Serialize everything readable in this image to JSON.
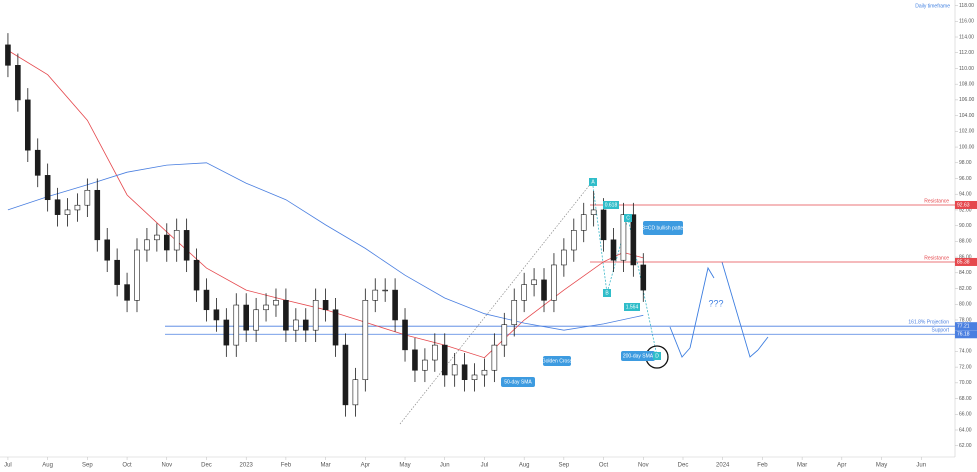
{
  "chart_data": {
    "type": "candlestick",
    "annotations": [
      "Daily timeframe",
      "AB=CD bullish pattern",
      "Golden Cross",
      "200-day SMA",
      "50-day SMA",
      "???",
      "A",
      "B",
      "C",
      "D",
      "0.618",
      "1.564"
    ],
    "x": [
      0,
      0.25,
      0.5,
      0.75,
      1,
      1.25,
      1.5,
      1.75,
      2,
      2.25,
      2.5,
      2.75,
      3,
      3.25,
      3.5,
      3.75,
      4,
      4.25,
      4.5,
      4.75,
      5,
      5.25,
      5.5,
      5.75,
      6,
      6.25,
      6.5,
      6.75,
      7,
      7.25,
      7.5,
      7.75,
      8,
      8.25,
      8.5,
      8.75,
      9,
      9.25,
      9.5,
      9.75,
      10,
      10.25,
      10.5,
      10.75,
      11,
      11.25,
      11.5,
      11.75,
      12,
      12.25,
      12.5,
      12.75,
      13,
      13.25,
      13.5,
      13.75,
      14,
      14.25,
      14.5,
      14.75,
      15,
      15.25,
      15.5,
      15.75,
      16
    ],
    "open": [
      113.0,
      110.4,
      106.0,
      99.6,
      96.4,
      93.3,
      91.4,
      92.0,
      92.6,
      94.5,
      88.2,
      85.6,
      82.5,
      80.5,
      86.9,
      88.2,
      88.8,
      86.9,
      89.4,
      85.6,
      81.8,
      79.3,
      78.0,
      74.8,
      79.9,
      76.7,
      79.3,
      79.9,
      80.5,
      76.7,
      78.0,
      76.7,
      80.5,
      79.3,
      74.8,
      67.2,
      70.4,
      80.5,
      81.8,
      81.8,
      78.0,
      74.2,
      71.6,
      72.9,
      74.8,
      71.0,
      72.3,
      70.4,
      71.0,
      71.6,
      74.8,
      77.4,
      80.5,
      82.5,
      83.1,
      80.5,
      85.0,
      86.9,
      89.4,
      91.4,
      92.0,
      88.2,
      85.6,
      91.4,
      85.0
    ],
    "high": [
      114.5,
      111.9,
      107.5,
      101.1,
      97.9,
      94.8,
      93.5,
      94.1,
      96.0,
      96.0,
      89.7,
      87.1,
      84.0,
      88.4,
      89.7,
      90.3,
      90.3,
      90.9,
      90.9,
      87.1,
      83.3,
      80.8,
      79.5,
      81.4,
      81.4,
      80.8,
      81.4,
      82.0,
      82.0,
      79.5,
      79.5,
      82.0,
      82.0,
      80.8,
      76.3,
      71.9,
      82.0,
      83.3,
      83.3,
      83.3,
      79.5,
      75.7,
      74.4,
      76.3,
      76.3,
      73.8,
      73.8,
      72.5,
      73.1,
      76.3,
      78.9,
      82.0,
      84.0,
      84.6,
      84.6,
      86.5,
      88.4,
      90.9,
      92.9,
      94.4,
      93.5,
      89.7,
      92.9,
      92.9,
      86.5
    ],
    "low": [
      108.9,
      104.5,
      98.1,
      94.9,
      91.8,
      89.9,
      89.9,
      90.5,
      91.1,
      86.7,
      84.1,
      81.0,
      79.0,
      79.0,
      85.4,
      86.7,
      85.4,
      85.4,
      84.1,
      80.3,
      77.8,
      76.5,
      73.3,
      73.3,
      75.2,
      75.2,
      77.8,
      78.4,
      75.2,
      75.2,
      75.2,
      75.2,
      77.8,
      73.3,
      65.7,
      65.7,
      68.9,
      79.0,
      80.3,
      76.5,
      72.7,
      70.1,
      70.1,
      71.4,
      69.5,
      69.5,
      68.9,
      68.9,
      69.5,
      70.1,
      73.3,
      75.9,
      79.0,
      81.0,
      79.0,
      79.0,
      83.5,
      85.4,
      87.9,
      89.9,
      86.7,
      84.1,
      84.1,
      83.5,
      80.3
    ],
    "close": [
      110.4,
      106.0,
      99.6,
      96.4,
      93.3,
      91.4,
      92.0,
      92.6,
      94.5,
      88.2,
      85.6,
      82.5,
      80.5,
      86.9,
      88.2,
      88.8,
      86.9,
      89.4,
      85.6,
      81.8,
      79.3,
      78.0,
      74.8,
      79.9,
      76.7,
      79.3,
      79.9,
      80.5,
      76.7,
      78.0,
      76.7,
      80.5,
      79.3,
      74.8,
      67.2,
      70.4,
      80.5,
      81.8,
      81.8,
      78.0,
      74.2,
      71.6,
      72.9,
      74.8,
      71.0,
      72.3,
      70.4,
      71.0,
      71.6,
      74.8,
      77.4,
      80.5,
      82.5,
      83.1,
      80.5,
      85.0,
      86.9,
      89.4,
      91.4,
      92.0,
      88.2,
      85.6,
      91.4,
      85.0,
      81.8
    ],
    "candle_color": "#1c1c1c",
    "lines": [
      {
        "color": "#e5484d",
        "x": [
          0,
          1,
          2,
          3,
          4,
          5,
          6,
          7,
          8,
          9,
          10,
          11,
          12,
          13,
          14,
          15,
          15.5,
          16
        ],
        "values": [
          112.3,
          109.2,
          103.4,
          93.9,
          89.2,
          84.6,
          81.8,
          80.5,
          79.3,
          77.7,
          76.1,
          74.8,
          73.2,
          78.0,
          81.8,
          85.4,
          86.6,
          85.9
        ]
      },
      {
        "color": "#4a7fe0",
        "x": [
          0,
          1,
          2,
          3,
          4,
          5,
          6,
          7,
          8,
          9,
          10,
          11,
          12,
          13,
          14,
          15,
          16
        ],
        "values": [
          92.0,
          93.7,
          95.2,
          96.8,
          97.7,
          98.0,
          95.4,
          93.3,
          90.1,
          87.1,
          83.7,
          80.8,
          78.8,
          77.6,
          76.7,
          77.5,
          78.6
        ]
      }
    ],
    "levels": [
      {
        "name": "Resistance",
        "value": 92.63,
        "color": "#e5484d"
      },
      {
        "name": "Resistance",
        "value": 85.38,
        "color": "#e5484d"
      },
      {
        "name": "161.8% Projection",
        "value": 77.21,
        "color": "#4a7fe0"
      },
      {
        "name": "Support",
        "value": 76.18,
        "color": "#4a7fe0"
      }
    ],
    "xlim": [
      -0.2,
      23.85
    ],
    "ylim": [
      60.82,
      118.71
    ],
    "xticks": [
      {
        "value": 0,
        "label": "Jul"
      },
      {
        "value": 1,
        "label": "Aug"
      },
      {
        "value": 2,
        "label": "Sep"
      },
      {
        "value": 3,
        "label": "Oct"
      },
      {
        "value": 4,
        "label": "Nov"
      },
      {
        "value": 5,
        "label": "Dec"
      },
      {
        "value": 6,
        "label": "2023"
      },
      {
        "value": 7,
        "label": "Feb"
      },
      {
        "value": 8,
        "label": "Mar"
      },
      {
        "value": 9,
        "label": "Apr"
      },
      {
        "value": 10,
        "label": "May"
      },
      {
        "value": 11,
        "label": "Jun"
      },
      {
        "value": 12,
        "label": "Jul"
      },
      {
        "value": 13,
        "label": "Aug"
      },
      {
        "value": 14,
        "label": "Sep"
      },
      {
        "value": 15,
        "label": "Oct"
      },
      {
        "value": 16,
        "label": "Nov"
      },
      {
        "value": 17,
        "label": "Dec"
      },
      {
        "value": 18,
        "label": "2024"
      },
      {
        "value": 19,
        "label": "Feb"
      },
      {
        "value": 20,
        "label": "Mar"
      },
      {
        "value": 21,
        "label": "Apr"
      },
      {
        "value": 22,
        "label": "May"
      },
      {
        "value": 23,
        "label": "Jun"
      }
    ],
    "yticks": [
      {
        "value": 62,
        "label": "62.00"
      },
      {
        "value": 64,
        "label": "64.00"
      },
      {
        "value": 66,
        "label": "66.00"
      },
      {
        "value": 68,
        "label": "68.00"
      },
      {
        "value": 70,
        "label": "70.00"
      },
      {
        "value": 72,
        "label": "72.00"
      },
      {
        "value": 74,
        "label": "74.00"
      },
      {
        "value": 76,
        "label": "76.00"
      },
      {
        "value": 78,
        "label": "78.00"
      },
      {
        "value": 80,
        "label": "80.00"
      },
      {
        "value": 82,
        "label": "82.00"
      },
      {
        "value": 84,
        "label": "84.00"
      },
      {
        "value": 86,
        "label": "86.00"
      },
      {
        "value": 88,
        "label": "88.00"
      },
      {
        "value": 90,
        "label": "90.00"
      },
      {
        "value": 92,
        "label": "92.00"
      },
      {
        "value": 94,
        "label": "94.00"
      },
      {
        "value": 96,
        "label": "96.00"
      },
      {
        "value": 98,
        "label": "98.00"
      },
      {
        "value": 100,
        "label": "100.00"
      },
      {
        "value": 102,
        "label": "102.00"
      },
      {
        "value": 104,
        "label": "104.00"
      },
      {
        "value": 106,
        "label": "106.00"
      },
      {
        "value": 108,
        "label": "108.00"
      },
      {
        "value": 110,
        "label": "110.00"
      },
      {
        "value": 112,
        "label": "112.00"
      },
      {
        "value": 114,
        "label": "114.00"
      },
      {
        "value": 116,
        "label": "116.00"
      },
      {
        "value": 118,
        "label": "118.00"
      }
    ]
  }
}
